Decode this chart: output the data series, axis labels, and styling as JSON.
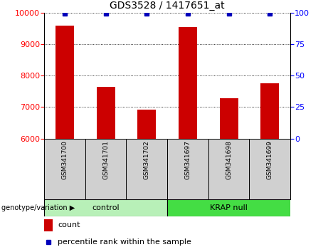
{
  "title": "GDS3528 / 1417651_at",
  "categories": [
    "GSM341700",
    "GSM341701",
    "GSM341702",
    "GSM341697",
    "GSM341698",
    "GSM341699"
  ],
  "count_values": [
    9580,
    7650,
    6930,
    9530,
    7280,
    7750
  ],
  "percentile_values": [
    99,
    99,
    99,
    99,
    99,
    99
  ],
  "ylim_left": [
    6000,
    10000
  ],
  "ylim_right": [
    0,
    100
  ],
  "yticks_left": [
    6000,
    7000,
    8000,
    9000,
    10000
  ],
  "yticks_right": [
    0,
    25,
    50,
    75,
    100
  ],
  "groups": [
    {
      "label": "control",
      "color_light": "#b8f0b8",
      "color_dark": "#55dd55"
    },
    {
      "label": "KRAP null",
      "color_light": "#55ee55",
      "color_dark": "#22cc22"
    }
  ],
  "bar_color": "#CC0000",
  "dot_color": "#0000BB",
  "legend_count_color": "#CC0000",
  "legend_pct_color": "#0000BB",
  "xlabel_area_label": "genotype/variation"
}
